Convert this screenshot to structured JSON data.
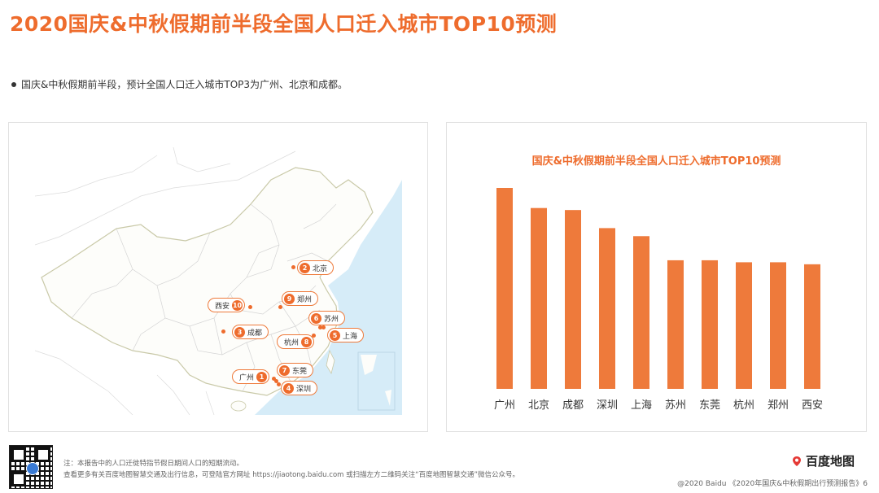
{
  "page": {
    "title": "2020国庆&中秋假期前半段全国人口迁入城市TOP10预测",
    "bullet": "国庆&中秋假期前半段，预计全国人口迁入城市TOP3为广州、北京和成都。"
  },
  "map": {
    "labels": [
      {
        "rank": "2",
        "name": "北京"
      },
      {
        "rank": "9",
        "name": "郑州"
      },
      {
        "rank": "10",
        "name": "西安"
      },
      {
        "rank": "6",
        "name": "苏州"
      },
      {
        "rank": "3",
        "name": "成都"
      },
      {
        "rank": "5",
        "name": "上海"
      },
      {
        "rank": "8",
        "name": "杭州"
      },
      {
        "rank": "7",
        "name": "东莞"
      },
      {
        "rank": "1",
        "name": "广州"
      },
      {
        "rank": "4",
        "name": "深圳"
      }
    ]
  },
  "chart_data": {
    "type": "bar",
    "title": "国庆&中秋假期前半段全国人口迁入城市TOP10预测",
    "categories": [
      "广州",
      "北京",
      "成都",
      "深圳",
      "上海",
      "苏州",
      "东莞",
      "杭州",
      "郑州",
      "西安"
    ],
    "values": [
      100,
      90,
      89,
      80,
      76,
      64,
      64,
      63,
      63,
      62
    ],
    "ylim": [
      0,
      100
    ],
    "xlabel": "",
    "ylabel": "",
    "grid": false,
    "bar_color": "#ee7a3b"
  },
  "footer": {
    "note1": "注：本报告中的人口迁徙特指节假日期间人口的短期流动。",
    "note2": "查看更多有关百度地图智慧交通及出行信息，可登陆官方网址 https://jiaotong.baidu.com 或扫描左方二维码关注“百度地图智慧交通”微信公众号。",
    "brand": "百度地图",
    "copyright": "@2020 Baidu 《2020年国庆&中秋假期出行预测报告》6"
  },
  "colors": {
    "accent": "#ee6c2d",
    "land": "#ffffff",
    "sea": "#d6ecf8",
    "border": "#c9c9a8"
  }
}
